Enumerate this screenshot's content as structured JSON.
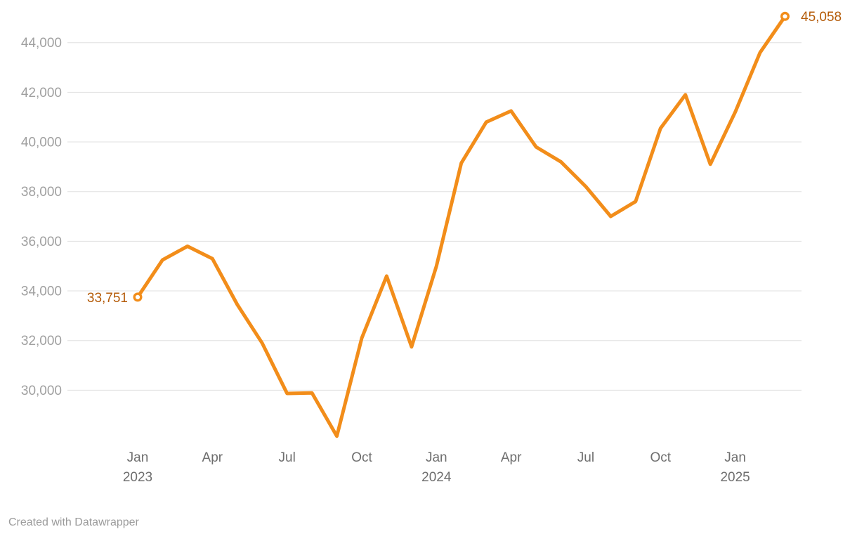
{
  "chart_data": {
    "type": "line",
    "title": "",
    "categories": [
      "Jan 2023",
      "Feb 2023",
      "Mar 2023",
      "Apr 2023",
      "May 2023",
      "Jun 2023",
      "Jul 2023",
      "Aug 2023",
      "Sep 2023",
      "Oct 2023",
      "Nov 2023",
      "Dec 2023",
      "Jan 2024",
      "Feb 2024",
      "Mar 2024",
      "Apr 2024",
      "May 2024",
      "Jun 2024",
      "Jul 2024",
      "Aug 2024",
      "Sep 2024",
      "Oct 2024",
      "Nov 2024",
      "Dec 2024",
      "Jan 2025",
      "Feb 2025",
      "Mar 2025"
    ],
    "values": [
      33751,
      35250,
      35800,
      35300,
      33450,
      31900,
      29870,
      29890,
      28150,
      32100,
      34600,
      31750,
      35000,
      39150,
      40800,
      41250,
      39800,
      39200,
      38200,
      37000,
      37600,
      40550,
      41900,
      39100,
      41200,
      43600,
      45058
    ],
    "first_point": {
      "category": "Jan 2023",
      "value": 33751,
      "label": "33,751"
    },
    "last_point": {
      "category": "Mar 2025",
      "value": 45058,
      "label": "45,058"
    },
    "y_axis": {
      "tick_values": [
        44000,
        42000,
        40000,
        38000,
        36000,
        34000,
        32000,
        30000
      ],
      "tick_labels": [
        "44,000",
        "42,000",
        "40,000",
        "38,000",
        "36,000",
        "34,000",
        "32,000",
        "30,000"
      ],
      "ylim": [
        27550,
        45700
      ],
      "grid": true
    },
    "x_axis": {
      "ticks": [
        {
          "month_index": 0,
          "line1": "Jan",
          "line2": "2023"
        },
        {
          "month_index": 3,
          "line1": "Apr",
          "line2": ""
        },
        {
          "month_index": 6,
          "line1": "Jul",
          "line2": ""
        },
        {
          "month_index": 9,
          "line1": "Oct",
          "line2": ""
        },
        {
          "month_index": 12,
          "line1": "Jan",
          "line2": "2024"
        },
        {
          "month_index": 15,
          "line1": "Apr",
          "line2": ""
        },
        {
          "month_index": 18,
          "line1": "Jul",
          "line2": ""
        },
        {
          "month_index": 21,
          "line1": "Oct",
          "line2": ""
        },
        {
          "month_index": 24,
          "line1": "Jan",
          "line2": "2025"
        }
      ]
    },
    "legend": "none",
    "colors": {
      "line": "#F28D1A",
      "value_label": "#B45B08",
      "gridline": "#e0e0e0",
      "y_tick_text": "#a0a0a0",
      "x_tick_text": "#6e6e6e"
    }
  },
  "footer": {
    "credit": "Created with Datawrapper"
  }
}
